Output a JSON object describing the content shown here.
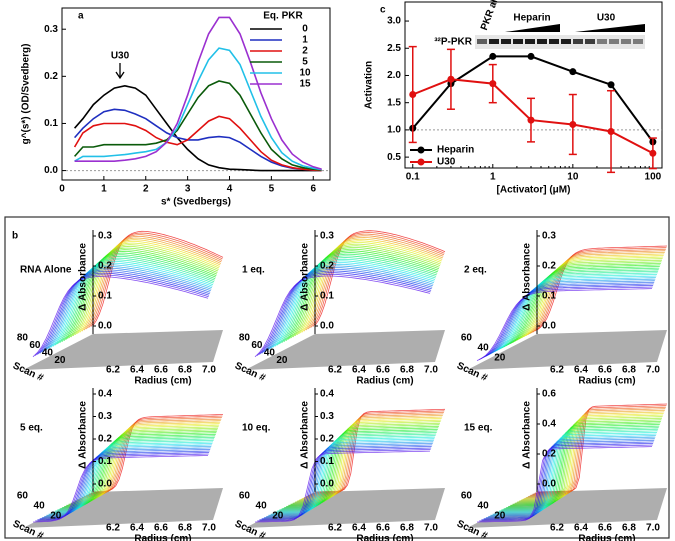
{
  "chart_data": [
    {
      "type": "line",
      "panel_label": "a",
      "x_label": "s* (Svedbergs)",
      "y_label": "g^(s*) (OD/Svedberg)",
      "legend_title": "Eq. PKR",
      "legend": "upper right",
      "annotation": "U30",
      "x": [
        0.3,
        0.5,
        0.75,
        1,
        1.25,
        1.5,
        1.75,
        2,
        2.25,
        2.5,
        2.75,
        3,
        3.25,
        3.5,
        3.75,
        4,
        4.25,
        4.5,
        4.75,
        5,
        5.25,
        5.5,
        5.75,
        6,
        6.2
      ],
      "series": [
        {
          "name": "0",
          "color": "#000000",
          "values": [
            0.09,
            0.11,
            0.14,
            0.16,
            0.175,
            0.18,
            0.175,
            0.16,
            0.13,
            0.1,
            0.07,
            0.045,
            0.025,
            0.012,
            0.006,
            0.003,
            0.002,
            0.001,
            0,
            0,
            0,
            0,
            0,
            0,
            0
          ]
        },
        {
          "name": "1",
          "color": "#1f2fc0",
          "values": [
            0.07,
            0.09,
            0.11,
            0.125,
            0.13,
            0.128,
            0.12,
            0.11,
            0.095,
            0.08,
            0.07,
            0.065,
            0.065,
            0.07,
            0.072,
            0.07,
            0.06,
            0.045,
            0.03,
            0.018,
            0.01,
            0.005,
            0.003,
            0.001,
            0
          ]
        },
        {
          "name": "2",
          "color": "#e01010",
          "values": [
            0.05,
            0.08,
            0.095,
            0.1,
            0.1,
            0.1,
            0.095,
            0.085,
            0.07,
            0.06,
            0.055,
            0.065,
            0.085,
            0.105,
            0.115,
            0.11,
            0.09,
            0.065,
            0.04,
            0.022,
            0.012,
            0.006,
            0.003,
            0.001,
            0
          ]
        },
        {
          "name": "5",
          "color": "#0a5a0a",
          "values": [
            0.03,
            0.05,
            0.05,
            0.055,
            0.055,
            0.055,
            0.055,
            0.055,
            0.058,
            0.065,
            0.085,
            0.12,
            0.155,
            0.18,
            0.19,
            0.185,
            0.16,
            0.12,
            0.08,
            0.045,
            0.025,
            0.012,
            0.006,
            0.003,
            0.001
          ]
        },
        {
          "name": "10",
          "color": "#22c0e8",
          "values": [
            0.02,
            0.03,
            0.03,
            0.03,
            0.032,
            0.034,
            0.037,
            0.04,
            0.045,
            0.06,
            0.09,
            0.14,
            0.19,
            0.235,
            0.26,
            0.255,
            0.225,
            0.17,
            0.115,
            0.07,
            0.038,
            0.02,
            0.01,
            0.005,
            0.002
          ]
        },
        {
          "name": "15",
          "color": "#9b30d0",
          "values": [
            0.02,
            0.02,
            0.02,
            0.02,
            0.02,
            0.022,
            0.025,
            0.03,
            0.04,
            0.06,
            0.1,
            0.16,
            0.23,
            0.29,
            0.325,
            0.325,
            0.29,
            0.23,
            0.165,
            0.11,
            0.065,
            0.035,
            0.018,
            0.008,
            0.003
          ]
        }
      ],
      "xlim": [
        0,
        6.4
      ],
      "xticks": [
        0,
        1,
        2,
        3,
        4,
        5,
        6
      ],
      "ylim": [
        -0.02,
        0.345
      ],
      "yticks": [
        {
          "value": 0,
          "label": "0.0"
        },
        {
          "value": 0.1,
          "label": "0.1"
        },
        {
          "value": 0.2,
          "label": "0.2"
        },
        {
          "value": 0.3,
          "label": "0.3"
        }
      ],
      "reference_line": 0
    },
    {
      "type": "line",
      "panel_label": "c",
      "log_x": true,
      "x_label": "[Activator] (μM)",
      "y_label": "Activation",
      "legend": "lower left",
      "gel_labels": {
        "row": "³²P-PKR",
        "lane": "PKR alone",
        "group1": "Heparin",
        "group2": "U30"
      },
      "x": [
        0.1,
        0.3,
        1,
        3,
        10,
        30,
        100
      ],
      "series": [
        {
          "name": "Heparin",
          "color": "#000000",
          "values": [
            1.03,
            1.85,
            2.35,
            2.35,
            2.07,
            1.83,
            0.78
          ]
        },
        {
          "name": "U30",
          "color": "#e01010",
          "values": [
            1.65,
            1.93,
            1.85,
            1.18,
            1.1,
            0.97,
            0.57
          ],
          "errors": [
            0.88,
            0.55,
            0.35,
            0.4,
            0.55,
            0.75,
            0.28
          ]
        }
      ],
      "xlim": [
        0.08,
        130
      ],
      "xticks": [
        0.1,
        1,
        10,
        100
      ],
      "ylim": [
        0.3,
        3.35
      ],
      "yticks": [
        {
          "value": 0.5,
          "label": "0.5"
        },
        {
          "value": 1,
          "label": "1.0"
        },
        {
          "value": 1.5,
          "label": "1.5"
        },
        {
          "value": 2,
          "label": "2.0"
        },
        {
          "value": 2.5,
          "label": "2.5"
        },
        {
          "value": 3,
          "label": "3.0"
        }
      ],
      "reference_line": 1
    }
  ],
  "panel_b": {
    "label": "b",
    "plots": [
      {
        "title": "RNA Alone",
        "y_label": "Δ Absorbance",
        "x_label": "Radius (cm)",
        "z_label": "Scan #",
        "y_ticks": [
          "0.0",
          "0.1",
          "0.2",
          "0.3"
        ],
        "x_ticks": [
          "6.2",
          "6.4",
          "6.6",
          "6.8",
          "7.0"
        ],
        "z_ticks": [
          "80",
          "60",
          "40",
          "20"
        ]
      },
      {
        "title": "1 eq.",
        "y_label": "Δ Absorbance",
        "x_label": "Radius (cm)",
        "z_label": "Scan #",
        "y_ticks": [
          "0.0",
          "0.1",
          "0.2",
          "0.3"
        ],
        "x_ticks": [
          "6.2",
          "6.4",
          "6.6",
          "6.8",
          "7.0"
        ],
        "z_ticks": [
          "80",
          "60",
          "40",
          "20"
        ]
      },
      {
        "title": "2 eq.",
        "y_label": "Δ Absorbance",
        "x_label": "Radius (cm)",
        "z_label": "Scan #",
        "y_ticks": [
          "0.0",
          "0.1",
          "0.2",
          "0.3"
        ],
        "x_ticks": [
          "6.2",
          "6.4",
          "6.6",
          "6.8",
          "7.0"
        ],
        "z_ticks": [
          "60",
          "40",
          "20"
        ]
      },
      {
        "title": "5 eq.",
        "y_label": "Δ Absorbance",
        "x_label": "Radius (cm)",
        "z_label": "Scan #",
        "y_ticks": [
          "0.0",
          "0.1",
          "0.2",
          "0.3",
          "0.4"
        ],
        "x_ticks": [
          "6.2",
          "6.4",
          "6.6",
          "6.8",
          "7.0"
        ],
        "z_ticks": [
          "60",
          "40",
          "20"
        ]
      },
      {
        "title": "10 eq.",
        "y_label": "Δ Absorbance",
        "x_label": "Radius (cm)",
        "z_label": "Scan #",
        "y_ticks": [
          "0.0",
          "0.1",
          "0.2",
          "0.3",
          "0.4"
        ],
        "x_ticks": [
          "6.2",
          "6.4",
          "6.6",
          "6.8",
          "7.0"
        ],
        "z_ticks": [
          "60",
          "40",
          "20"
        ]
      },
      {
        "title": "15 eq.",
        "y_label": "Δ Absorbance",
        "x_label": "Radius (cm)",
        "z_label": "Scan #",
        "y_ticks": [
          "0.0",
          "0.2",
          "0.4",
          "0.6"
        ],
        "x_ticks": [
          "6.2",
          "6.4",
          "6.6",
          "6.8",
          "7.0"
        ],
        "z_ticks": [
          "60",
          "40",
          "20"
        ]
      }
    ]
  }
}
